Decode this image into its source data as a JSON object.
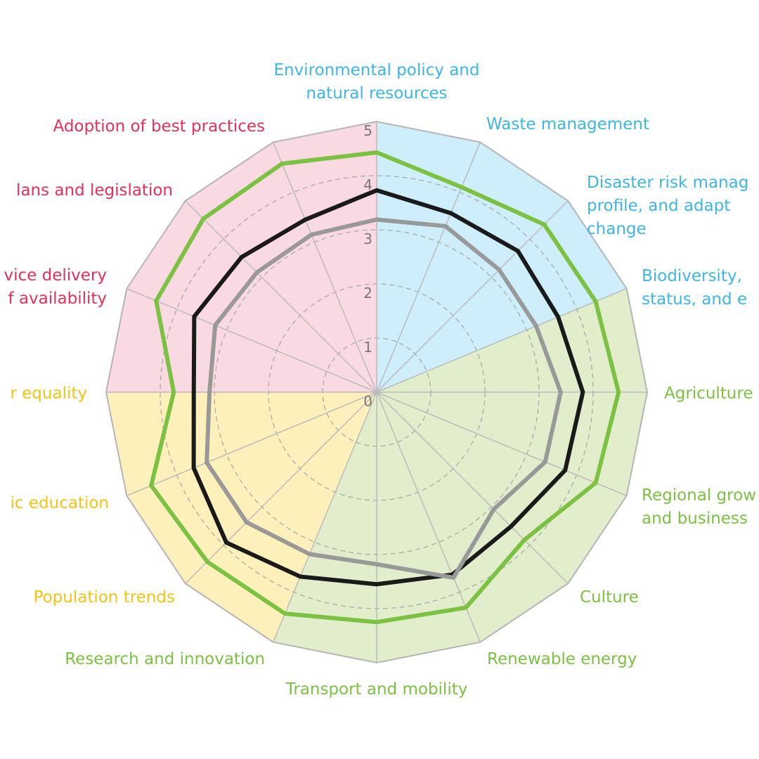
{
  "chart_data": {
    "type": "radar",
    "categories": [
      "Environmental policy and\nnatural resources",
      "Waste management",
      "Disaster risk manag\nprofile, and adapt\nchange",
      "Biodiversity,\nstatus, and e",
      "Agriculture",
      "Regional grow\nand business",
      "Culture",
      "Renewable energy",
      "Transport and mobility",
      "Research and innovation",
      "Population trends",
      "ic education",
      "r equality",
      "vice delivery\nf availability",
      "lans and legislation",
      "Adoption of best practices"
    ],
    "label_colors": [
      "#3db6e6",
      "#3db6e6",
      "#3db6e6",
      "#3db6e6",
      "#7cc242",
      "#7cc242",
      "#7cc242",
      "#7cc242",
      "#7cc242",
      "#7cc242",
      "#f2c315",
      "#f2c315",
      "#f2c315",
      "#e5315a",
      "#e5315a",
      "#e5315a"
    ],
    "wedge_colors": [
      "#cdeefa",
      "#cdeefa",
      "#cdeefa",
      "#e2edcc",
      "#e2edcc",
      "#e2edcc",
      "#e2edcc",
      "#e2edcc",
      "#e2edcc",
      "#fdf0bb",
      "#fdf0bb",
      "#fdf0bb",
      "#f9d9e2",
      "#f9d9e2",
      "#f9d9e2",
      "#f9d9e2"
    ],
    "series": [
      {
        "color": "#7cc242",
        "values": [
          4.43,
          4.1,
          4.38,
          4.38,
          4.47,
          4.38,
          3.86,
          4.31,
          4.25,
          4.43,
          4.43,
          4.51,
          3.75,
          4.41,
          4.53,
          4.57
        ]
      },
      {
        "color": "#1a1a1a",
        "values": [
          3.73,
          3.58,
          3.69,
          3.63,
          3.81,
          3.77,
          3.51,
          3.65,
          3.55,
          3.69,
          3.93,
          3.66,
          3.38,
          3.65,
          3.53,
          3.45
        ]
      },
      {
        "color": "#999999",
        "values": [
          3.19,
          3.32,
          3.2,
          3.19,
          3.4,
          3.37,
          3.06,
          3.71,
          3.18,
          3.24,
          3.4,
          3.4,
          3.09,
          3.23,
          3.13,
          3.15
        ]
      }
    ],
    "ylim": [
      0,
      5
    ],
    "yticks": [
      0,
      1,
      2,
      3,
      4,
      5
    ],
    "grid": true
  }
}
